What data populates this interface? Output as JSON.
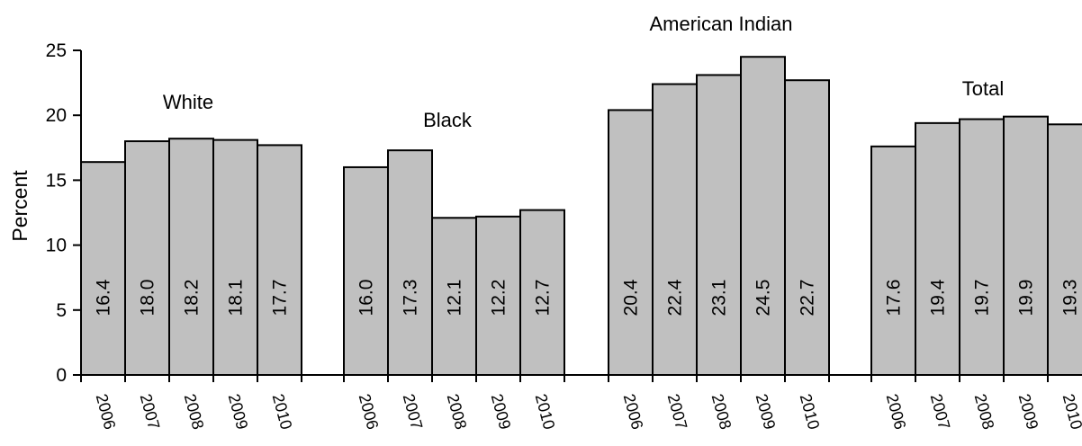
{
  "colors": {
    "bar_fill": "#c0c0c0",
    "bar_stroke": "#000000",
    "axis": "#000000",
    "background": "#ffffff"
  },
  "chart_data": {
    "type": "bar",
    "title": "",
    "xlabel": "",
    "ylabel": "Percent",
    "ylim": [
      0,
      25
    ],
    "yticks": [
      0,
      5,
      10,
      15,
      20,
      25
    ],
    "grid": false,
    "legend": "none",
    "categories": [
      "2006",
      "2007",
      "2008",
      "2009",
      "2010"
    ],
    "groups": [
      {
        "name": "White",
        "values": [
          16.4,
          18.0,
          18.2,
          18.1,
          17.7
        ],
        "labels": [
          "16.4",
          "18.0",
          "18.2",
          "18.1",
          "17.7"
        ]
      },
      {
        "name": "Black",
        "values": [
          16.0,
          17.3,
          12.1,
          12.2,
          12.7
        ],
        "labels": [
          "16.0",
          "17.3",
          "12.1",
          "12.2",
          "12.7"
        ]
      },
      {
        "name": "American Indian",
        "values": [
          20.4,
          22.4,
          23.1,
          24.5,
          22.7
        ],
        "labels": [
          "20.4",
          "22.4",
          "23.1",
          "24.5",
          "22.7"
        ]
      },
      {
        "name": "Total",
        "values": [
          17.6,
          19.4,
          19.7,
          19.9,
          19.3
        ],
        "labels": [
          "17.6",
          "19.4",
          "19.7",
          "19.9",
          "19.3"
        ]
      }
    ]
  }
}
